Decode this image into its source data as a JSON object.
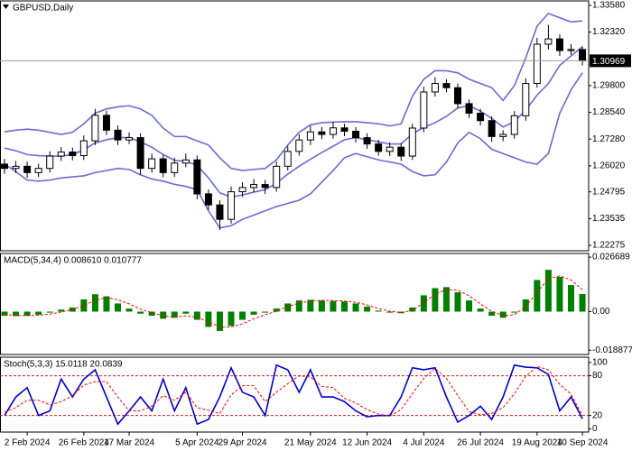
{
  "chart_data": [
    {
      "type": "candlestick",
      "title": "GBPUSD,Daily",
      "categories": [
        null,
        null,
        "2 Feb 2024",
        null,
        null,
        null,
        null,
        "26 Feb 2024",
        null,
        null,
        null,
        "17 Mar 2024",
        null,
        null,
        null,
        null,
        null,
        "5 Apr 2024",
        null,
        null,
        null,
        "29 Apr 2024",
        null,
        null,
        null,
        null,
        null,
        "21 May 2024",
        null,
        null,
        null,
        null,
        "12 Jun 2024",
        null,
        null,
        null,
        null,
        "4 Jul 2024",
        null,
        null,
        null,
        null,
        "26 Jul 2024",
        null,
        null,
        null,
        null,
        "19 Aug 2024",
        null,
        null,
        null,
        "10 Sep 2024"
      ],
      "open": [
        1.261,
        1.259,
        1.26,
        1.257,
        1.259,
        1.2648,
        1.2667,
        1.265,
        1.272,
        1.284,
        1.277,
        1.2724,
        1.2735,
        1.259,
        1.2635,
        1.257,
        1.2615,
        1.263,
        1.247,
        1.2418,
        1.235,
        1.248,
        1.25,
        1.2514,
        1.25,
        1.26,
        1.267,
        1.2724,
        1.2762,
        1.275,
        1.2781,
        1.2765,
        1.2735,
        1.2705,
        1.267,
        1.269,
        1.2648,
        1.278,
        1.295,
        1.299,
        1.297,
        1.2895,
        1.285,
        1.2815,
        1.274,
        1.275,
        1.2838,
        1.299,
        1.3175,
        1.32,
        1.3145,
        1.315
      ],
      "high": [
        1.2635,
        1.2625,
        1.2622,
        1.2612,
        1.267,
        1.269,
        1.2688,
        1.2745,
        1.287,
        1.2862,
        1.2792,
        1.276,
        1.2755,
        1.266,
        1.2652,
        1.264,
        1.266,
        1.265,
        1.249,
        1.244,
        1.2505,
        1.2525,
        1.254,
        1.2535,
        1.2622,
        1.2695,
        1.275,
        1.279,
        1.2785,
        1.281,
        1.28,
        1.2785,
        1.2755,
        1.2725,
        1.2712,
        1.271,
        1.28,
        1.2975,
        1.302,
        1.301,
        1.299,
        1.2915,
        1.287,
        1.2835,
        1.277,
        1.286,
        1.3015,
        1.3205,
        1.3266,
        1.3222,
        1.3175,
        1.3165
      ],
      "low": [
        1.2565,
        1.2568,
        1.2545,
        1.255,
        1.257,
        1.2625,
        1.2628,
        1.263,
        1.27,
        1.2748,
        1.27,
        1.2705,
        1.256,
        1.257,
        1.2548,
        1.255,
        1.2595,
        1.2445,
        1.2395,
        1.23,
        1.233,
        1.2455,
        1.2478,
        1.247,
        1.248,
        1.258,
        1.265,
        1.27,
        1.2728,
        1.273,
        1.2742,
        1.2712,
        1.2682,
        1.265,
        1.2648,
        1.2625,
        1.263,
        1.276,
        1.2928,
        1.2948,
        1.2872,
        1.2828,
        1.2792,
        1.2715,
        1.2718,
        1.273,
        1.2815,
        1.297,
        1.315,
        1.312,
        1.3125,
        1.3075
      ],
      "close": [
        1.259,
        1.26,
        1.257,
        1.259,
        1.2648,
        1.2667,
        1.265,
        1.272,
        1.284,
        1.277,
        1.2724,
        1.2735,
        1.259,
        1.2635,
        1.257,
        1.2615,
        1.263,
        1.247,
        1.2418,
        1.235,
        1.248,
        1.25,
        1.2514,
        1.25,
        1.26,
        1.267,
        1.2724,
        1.2762,
        1.275,
        1.2781,
        1.2765,
        1.2735,
        1.2705,
        1.267,
        1.269,
        1.2648,
        1.278,
        1.295,
        1.299,
        1.297,
        1.2895,
        1.285,
        1.2815,
        1.274,
        1.275,
        1.2838,
        1.299,
        1.3175,
        1.32,
        1.3145,
        1.315,
        1.30969
      ],
      "up_color": "#ffffff",
      "down_color": "#000000",
      "series": [
        {
          "color": "#6a6ad4",
          "values": [
            1.2762,
            1.277,
            1.2775,
            1.277,
            1.276,
            1.275,
            1.276,
            1.28,
            1.285,
            1.287,
            1.288,
            1.2885,
            1.287,
            1.284,
            1.278,
            1.274,
            1.274,
            1.272,
            1.27,
            1.264,
            1.259,
            1.258,
            1.2585,
            1.259,
            1.263,
            1.27,
            1.276,
            1.2795,
            1.2805,
            1.2808,
            1.281,
            1.281,
            1.2805,
            1.28,
            1.279,
            1.28,
            1.293,
            1.301,
            1.305,
            1.305,
            1.304,
            1.301,
            1.299,
            1.297,
            1.291,
            1.298,
            1.311,
            1.326,
            1.332,
            1.33,
            1.328,
            1.3285
          ]
        },
        {
          "color": "#6a6ad4",
          "values": [
            1.2686,
            1.2673,
            1.2655,
            1.265,
            1.2648,
            1.2648,
            1.2655,
            1.2678,
            1.271,
            1.2725,
            1.2735,
            1.2735,
            1.2715,
            1.269,
            1.2655,
            1.2628,
            1.2623,
            1.2605,
            1.2545,
            1.2475,
            1.2455,
            1.2465,
            1.2478,
            1.249,
            1.252,
            1.2563,
            1.26,
            1.2633,
            1.2665,
            1.2694,
            1.2725,
            1.2735,
            1.2725,
            1.2715,
            1.2705,
            1.2705,
            1.2753,
            1.2783,
            1.2805,
            1.2835,
            1.2875,
            1.2885,
            1.286,
            1.2825,
            1.2785,
            1.281,
            1.2865,
            1.2935,
            1.299,
            1.3075,
            1.312,
            1.3163
          ]
        },
        {
          "color": "#6a6ad4",
          "values": [
            1.261,
            1.2575,
            1.2535,
            1.253,
            1.2535,
            1.2545,
            1.255,
            1.2555,
            1.257,
            1.258,
            1.259,
            1.2585,
            1.256,
            1.254,
            1.253,
            1.2515,
            1.2505,
            1.249,
            1.239,
            1.231,
            1.232,
            1.235,
            1.237,
            1.239,
            1.241,
            1.2425,
            1.244,
            1.247,
            1.2525,
            1.258,
            1.264,
            1.266,
            1.2645,
            1.263,
            1.262,
            1.261,
            1.2575,
            1.2555,
            1.256,
            1.262,
            1.271,
            1.276,
            1.273,
            1.268,
            1.266,
            1.264,
            1.262,
            1.261,
            1.266,
            1.285,
            1.296,
            1.304
          ]
        }
      ],
      "ylim": [
        1.2202,
        1.3379
      ],
      "yticks": [
        {
          "value": 1.3358,
          "label": "1.33580"
        },
        {
          "value": 1.3232,
          "label": "1.32320"
        },
        {
          "value": 1.298,
          "label": "1.29800"
        },
        {
          "value": 1.2854,
          "label": "1.28540"
        },
        {
          "value": 1.2728,
          "label": "1.27280"
        },
        {
          "value": 1.2602,
          "label": "1.26020"
        },
        {
          "value": 1.24795,
          "label": "1.24795"
        },
        {
          "value": 1.23535,
          "label": "1.23535"
        },
        {
          "value": 1.22275,
          "label": "1.22275"
        }
      ],
      "last_price": 1.30969
    },
    {
      "type": "macd",
      "title": "MACD(5,34,4) 0.008610 0.010777",
      "series": [
        {
          "style": "histogram",
          "color": "#008000",
          "values": [
            -0.002,
            -0.0022,
            -0.002,
            -0.0015,
            -0.0005,
            0.001,
            0.002,
            0.006,
            0.0085,
            0.0075,
            0.004,
            0.0015,
            -0.001,
            -0.002,
            -0.0035,
            -0.003,
            -0.001,
            -0.004,
            -0.0075,
            -0.0095,
            -0.007,
            -0.004,
            -0.0015,
            -0.0005,
            0.0015,
            0.004,
            0.0055,
            0.0058,
            0.0055,
            0.0052,
            0.005,
            0.004,
            0.0025,
            0.0005,
            -0.0005,
            -0.0008,
            0.002,
            0.008,
            0.0115,
            0.012,
            0.0095,
            0.0055,
            0.0015,
            -0.002,
            -0.003,
            -0.0005,
            0.006,
            0.0155,
            0.0205,
            0.017,
            0.013,
            0.00861
          ]
        },
        {
          "style": "dashed",
          "color": "#ff0000",
          "values": [
            -0.0015,
            -0.0018,
            -0.002,
            -0.0018,
            -0.0012,
            -0.0002,
            0.001,
            0.003,
            0.0055,
            0.007,
            0.0058,
            0.0038,
            0.0012,
            -0.0005,
            -0.002,
            -0.0027,
            -0.002,
            -0.0028,
            -0.005,
            -0.0075,
            -0.0075,
            -0.006,
            -0.0035,
            -0.0015,
            0.0002,
            0.0025,
            0.0042,
            0.0052,
            0.0055,
            0.0054,
            0.0052,
            0.0046,
            0.0033,
            0.0015,
            0.0002,
            -0.0005,
            0.0006,
            0.0045,
            0.0085,
            0.0108,
            0.0105,
            0.0078,
            0.0038,
            0.0002,
            -0.002,
            -0.0015,
            0.0025,
            0.0095,
            0.016,
            0.0175,
            0.0155,
            0.010777
          ]
        }
      ],
      "ylim": [
        -0.021,
        0.0285
      ],
      "yticks": [
        0.026689,
        {
          "value": 0,
          "label": "0.00"
        },
        -0.018877
      ]
    },
    {
      "type": "stochastic",
      "title": "Stoch(5,3,3) 15.0118 20.0839",
      "series": [
        {
          "style": "solid",
          "color": "#0000cc",
          "values": [
            20,
            48,
            62,
            20,
            27,
            75,
            48,
            75,
            89,
            48,
            7,
            27,
            48,
            27,
            75,
            27,
            62,
            7,
            14,
            48,
            92,
            55,
            48,
            20,
            96,
            89,
            55,
            89,
            48,
            48,
            41,
            27,
            18,
            20,
            20,
            48,
            92,
            89,
            92,
            48,
            10,
            20,
            34,
            14,
            48,
            96,
            93,
            92,
            82,
            27,
            48,
            15.0118
          ]
        },
        {
          "style": "dashed",
          "color": "#ff0000",
          "values": [
            25,
            32,
            43,
            43,
            36,
            41,
            50,
            66,
            71,
            71,
            48,
            27,
            27,
            34,
            50,
            43,
            55,
            32,
            28,
            23,
            51,
            65,
            65,
            41,
            55,
            68,
            80,
            78,
            64,
            62,
            46,
            39,
            29,
            22,
            19,
            29,
            53,
            76,
            91,
            76,
            50,
            26,
            21,
            23,
            32,
            53,
            79,
            94,
            89,
            67,
            52,
            20.0839
          ]
        }
      ],
      "levels": [
        80,
        20
      ],
      "ylim": [
        -5,
        108
      ],
      "yticks": [
        100,
        80,
        20,
        0
      ]
    }
  ]
}
